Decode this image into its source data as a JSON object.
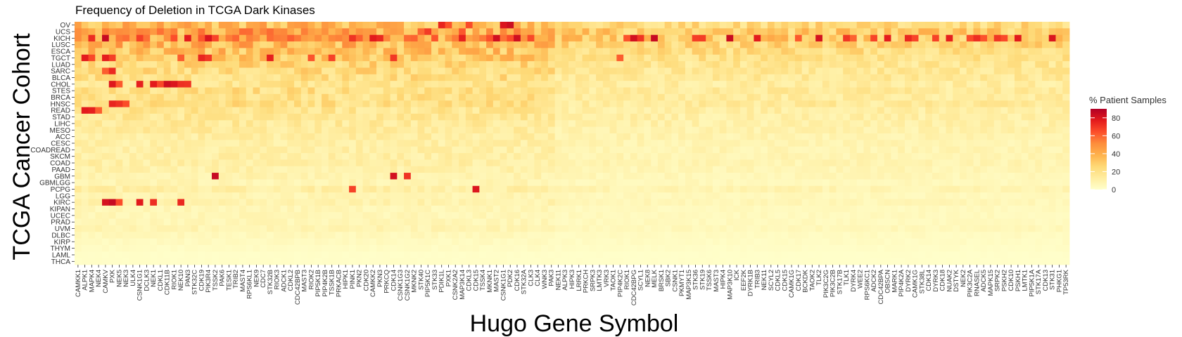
{
  "chart_data": {
    "type": "heatmap",
    "title": "Frequency of Deletion in TCGA Dark Kinases",
    "xlabel": "Hugo Gene Symbol",
    "ylabel": "TCGA Cancer Cohort",
    "legend_title": "% Patient Samples",
    "legend_ticks": [
      0,
      20,
      40,
      60,
      80
    ],
    "value_range": [
      0,
      90
    ],
    "colors": [
      "#ffffcc",
      "#ffeda0",
      "#fed976",
      "#feb24c",
      "#fd8d3c",
      "#fc4e2a",
      "#e31a1c",
      "#b10026"
    ],
    "legend_placement": "right",
    "rows": [
      "OV",
      "UCS",
      "KICH",
      "LUSC",
      "ESCA",
      "TGCT",
      "LUAD",
      "SARC",
      "BLCA",
      "CHOL",
      "STES",
      "BRCA",
      "HNSC",
      "READ",
      "STAD",
      "LIHC",
      "MESO",
      "ACC",
      "CESC",
      "COADREAD",
      "SKCM",
      "COAD",
      "PAAD",
      "GBM",
      "GBMLGG",
      "PCPG",
      "LGG",
      "KIRC",
      "KIPAN",
      "UCEC",
      "PRAD",
      "UVM",
      "DLBC",
      "KIRP",
      "THYM",
      "LAML",
      "THCA"
    ],
    "columns": [
      "CAMKK1",
      "ALPK1",
      "MAPK4",
      "NEK4",
      "CAMKV",
      "PXK",
      "NEK5",
      "NEK3",
      "ULK4",
      "CSNK1G1",
      "DCLK3",
      "NEK1",
      "CDKL1",
      "CDK11B",
      "RIOK1",
      "NEK10",
      "PAN3",
      "STK32C",
      "CDK19",
      "PIK3R4",
      "TSSK2",
      "PAK6",
      "TESK1",
      "TRIB2",
      "MAST4",
      "RPS6KL1",
      "NEK9",
      "CDC7",
      "STK32B",
      "RIOK3",
      "ADCK1",
      "CDKL2",
      "CDC42BPB",
      "MAST3",
      "RIOK2",
      "PIP5K1B",
      "PIP4K2B",
      "TSSK1B",
      "PRKACB",
      "HIPK1",
      "PINK1",
      "PKN2",
      "CDK20",
      "CAMKK2",
      "PKN3",
      "PRKCQ",
      "CDK14",
      "CSNK1G3",
      "CSNK1G2",
      "MKNK2",
      "STK40",
      "PIP5K1C",
      "STK33",
      "PDIK1L",
      "PXK1",
      "CSNK2A2",
      "MAP3K14",
      "CDKL3",
      "CDK15",
      "TSSK4",
      "MKNK1",
      "MAST2",
      "CSNK1G1",
      "PDK2",
      "CDK16",
      "STK32A",
      "CLK3",
      "CLK4",
      "WNK3",
      "PAK3",
      "NEK11",
      "ALPK3",
      "HIPK3",
      "LRRK1",
      "PRKCH",
      "SRPK3",
      "LMTK3",
      "VRK3",
      "TAOK1",
      "PIP4K2C",
      "RIOK1",
      "CDC42BPG",
      "SCYL1",
      "NEK8",
      "MELK",
      "BRSK1",
      "SBK2",
      "CSNK1",
      "PKMYT1",
      "MAP3K15",
      "STK36",
      "STK19",
      "TSSK6",
      "MAST3",
      "HIPK4",
      "MAP3K10",
      "ICK",
      "EEF2K",
      "DYRK1B",
      "TRIB3",
      "NEK11",
      "SCYL2",
      "CDKL5",
      "CDK15",
      "CAMK1G",
      "CDK17",
      "BCKDK",
      "TAOK2",
      "TLK2",
      "PIK3C2G",
      "PIK3C2B",
      "STK17B",
      "TLK1",
      "DYRK4",
      "WEE2",
      "RPS6KC1",
      "ADCK2",
      "CDC42BPA",
      "OBSCN",
      "MARK1",
      "PIP4K2A",
      "DYRK2",
      "CAMK1G",
      "STK38L",
      "CDK14",
      "DYRK3",
      "CDK18",
      "NUAK2",
      "DSTYK",
      "NEK2",
      "PIK3C2A",
      "RNASEL",
      "ADCK5",
      "MAPK15",
      "SRPK2",
      "PSKH2",
      "CDK10",
      "PSKH1",
      "LMTK1",
      "PIP5K1A",
      "STK17A",
      "CDK13",
      "STK31",
      "PHKG1",
      "TP53RK"
    ]
  }
}
